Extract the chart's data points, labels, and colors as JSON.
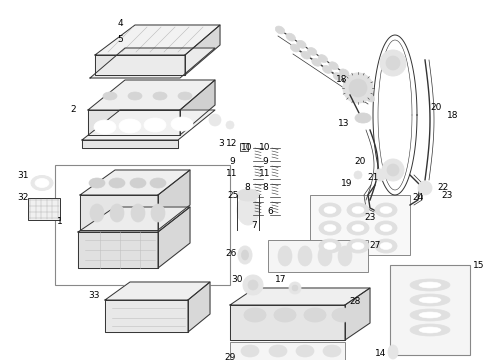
{
  "background_color": "#ffffff",
  "text_color": "#000000",
  "line_color": "#333333",
  "label_fontsize": 6.5,
  "figsize": [
    4.9,
    3.6
  ],
  "dpi": 100
}
